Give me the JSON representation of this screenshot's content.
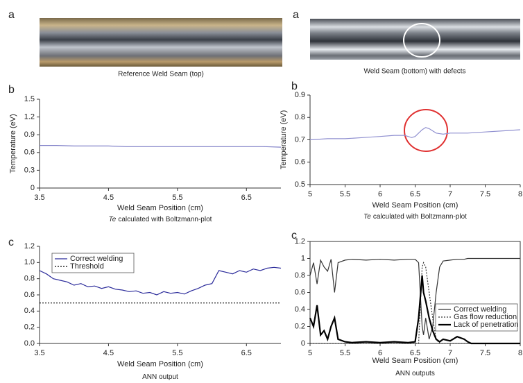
{
  "images": [
    {
      "panel_label": "a",
      "caption": "Reference Weld Seam (top)"
    },
    {
      "panel_label": "a",
      "caption": "Weld Seam (bottom) with defects"
    }
  ],
  "chart_data": [
    {
      "type": "line",
      "panel_label": "b",
      "ylabel": "Temperature (eV)",
      "xlabel": "Weld Seam Position (cm)",
      "caption_italic": "Te",
      "caption": "calculated with Boltzmann-plot",
      "xlim": [
        3.5,
        7
      ],
      "ylim": [
        0,
        1.5
      ],
      "xticks": [
        3.5,
        4.5,
        5.5,
        6.5
      ],
      "yticks": [
        0,
        0.3,
        0.6,
        0.9,
        1.2,
        1.5
      ],
      "x": [
        3.5,
        3.75,
        4,
        4.25,
        4.5,
        4.75,
        5,
        5.25,
        5.5,
        5.75,
        6,
        6.25,
        6.5,
        6.75,
        7
      ],
      "series": [
        {
          "color": "#8080c8",
          "values": [
            0.72,
            0.72,
            0.71,
            0.71,
            0.71,
            0.7,
            0.7,
            0.7,
            0.7,
            0.7,
            0.7,
            0.7,
            0.7,
            0.7,
            0.69
          ]
        }
      ]
    },
    {
      "type": "line",
      "panel_label": "c",
      "xlabel": "Weld Seam Position (cm)",
      "caption": "ANN output",
      "xlim": [
        3.5,
        7
      ],
      "ylim": [
        0,
        1.2
      ],
      "xticks": [
        3.5,
        4.5,
        5.5,
        6.5
      ],
      "yticks": [
        {
          "value": 0,
          "label": "0.0"
        },
        0.2,
        0.4,
        0.6,
        0.8,
        {
          "value": 1,
          "label": "1.0"
        },
        1.2
      ],
      "legend": "upper left",
      "x": [
        3.5,
        3.6,
        3.7,
        3.8,
        3.9,
        4.0,
        4.1,
        4.2,
        4.3,
        4.4,
        4.5,
        4.6,
        4.7,
        4.8,
        4.9,
        5.0,
        5.1,
        5.2,
        5.3,
        5.4,
        5.5,
        5.6,
        5.7,
        5.8,
        5.9,
        6.0,
        6.1,
        6.2,
        6.3,
        6.4,
        6.5,
        6.6,
        6.7,
        6.8,
        6.9,
        7.0
      ],
      "series": [
        {
          "name": "Correct welding",
          "color": "#2a2a9a",
          "values": [
            0.9,
            0.86,
            0.8,
            0.78,
            0.76,
            0.72,
            0.74,
            0.7,
            0.71,
            0.68,
            0.7,
            0.67,
            0.66,
            0.64,
            0.65,
            0.62,
            0.63,
            0.6,
            0.64,
            0.62,
            0.63,
            0.61,
            0.65,
            0.68,
            0.72,
            0.74,
            0.9,
            0.88,
            0.86,
            0.9,
            0.88,
            0.92,
            0.9,
            0.93,
            0.94,
            0.93
          ]
        },
        {
          "name": "Threshold",
          "color": "#000000",
          "style": "dotted",
          "x": [
            3.5,
            7
          ],
          "values": [
            0.5,
            0.5
          ]
        }
      ]
    },
    {
      "type": "line",
      "panel_label": "b",
      "ylabel": "Temperature (eV)",
      "xlabel": "Weld Seam Position (cm)",
      "caption_italic": "Te",
      "caption": "calculated with Boltzmann-plot",
      "xlim": [
        5,
        8
      ],
      "ylim": [
        0.5,
        0.9
      ],
      "xticks": [
        5,
        5.5,
        6,
        6.5,
        7,
        7.5,
        8
      ],
      "yticks": [
        0.5,
        0.6,
        0.7,
        0.8,
        0.9
      ],
      "x": [
        5,
        5.25,
        5.5,
        5.75,
        6,
        6.2,
        6.35,
        6.45,
        6.5,
        6.55,
        6.6,
        6.65,
        6.7,
        6.75,
        6.8,
        6.9,
        7,
        7.25,
        7.5,
        7.75,
        8
      ],
      "series": [
        {
          "color": "#9090d0",
          "values": [
            0.7,
            0.705,
            0.705,
            0.71,
            0.715,
            0.72,
            0.72,
            0.71,
            0.715,
            0.73,
            0.745,
            0.755,
            0.75,
            0.74,
            0.73,
            0.725,
            0.73,
            0.73,
            0.735,
            0.74,
            0.745
          ]
        }
      ]
    },
    {
      "type": "line",
      "panel_label": "c",
      "xlabel": "Weld Seam Position (cm)",
      "caption": "ANN outputs",
      "xlim": [
        5,
        8
      ],
      "ylim": [
        0,
        1.2
      ],
      "xticks": [
        5,
        5.5,
        6,
        6.5,
        7,
        7.5,
        8
      ],
      "yticks": [
        0,
        0.2,
        0.4,
        0.6,
        0.8,
        1,
        1.2
      ],
      "legend": "lower right",
      "x": [
        5,
        5.05,
        5.1,
        5.15,
        5.2,
        5.25,
        5.3,
        5.35,
        5.4,
        5.5,
        5.6,
        5.8,
        6.0,
        6.2,
        6.4,
        6.5,
        6.55,
        6.6,
        6.62,
        6.65,
        6.7,
        6.75,
        6.8,
        6.85,
        6.9,
        7.0,
        7.1,
        7.2,
        7.25,
        7.3,
        7.5,
        7.75,
        8
      ],
      "series": [
        {
          "name": "Correct welding",
          "color": "#333333",
          "values": [
            0.8,
            0.95,
            0.7,
            0.98,
            0.9,
            0.85,
            0.99,
            0.6,
            0.95,
            0.98,
            0.99,
            0.98,
            0.99,
            0.98,
            0.99,
            0.99,
            0.95,
            0.2,
            0.1,
            0.3,
            0.05,
            0.2,
            0.6,
            0.9,
            0.97,
            0.98,
            0.99,
            0.99,
            1,
            1,
            1,
            1,
            1
          ]
        },
        {
          "name": "Gas flow reduction",
          "color": "#333333",
          "style": "dotted",
          "values": [
            0,
            0,
            0,
            0,
            0,
            0,
            0,
            0,
            0,
            0,
            0,
            0,
            0,
            0,
            0,
            0,
            0,
            0.9,
            0.95,
            0.9,
            0.6,
            0.3,
            0.05,
            0,
            0,
            0,
            0,
            0,
            0,
            0,
            0,
            0,
            0
          ]
        },
        {
          "name": "Lack of penetration",
          "color": "#000000",
          "style": "thick",
          "values": [
            0.3,
            0.2,
            0.45,
            0.1,
            0.15,
            0.05,
            0.2,
            0.3,
            0.05,
            0.02,
            0.01,
            0.02,
            0.01,
            0.02,
            0.01,
            0.02,
            0.3,
            0.8,
            0.6,
            0.5,
            0.3,
            0.15,
            0.05,
            0.02,
            0.05,
            0.03,
            0.08,
            0.05,
            0.02,
            0,
            0,
            0,
            0
          ]
        }
      ]
    }
  ]
}
